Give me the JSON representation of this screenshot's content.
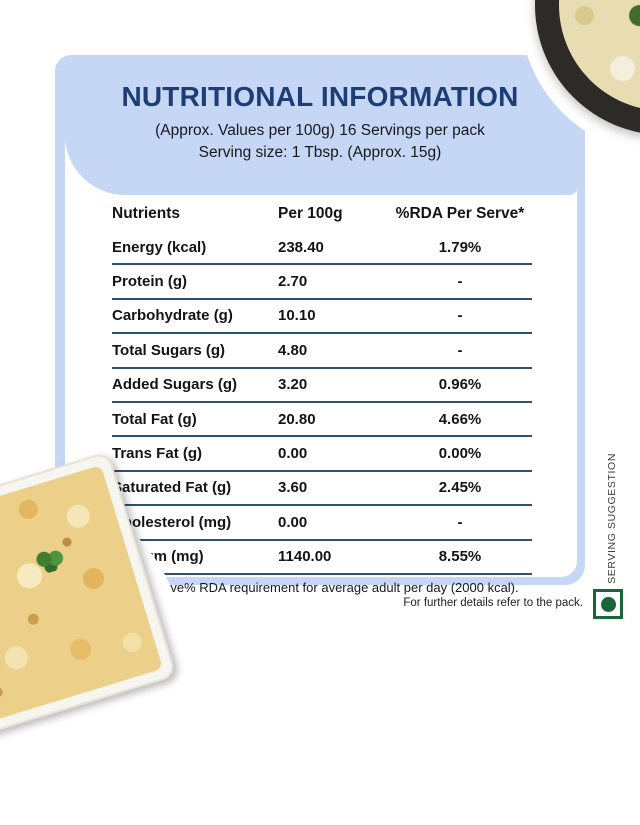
{
  "header": {
    "title": "NUTRITIONAL INFORMATION",
    "subtitle_line1": "(Approx. Values per 100g) 16 Servings per pack",
    "subtitle_line2": "Serving size: 1 Tbsp. (Approx. 15g)"
  },
  "table": {
    "columns": [
      "Nutrients",
      "Per 100g",
      "%RDA Per Serve*"
    ],
    "rows": [
      [
        "Energy (kcal)",
        "238.40",
        "1.79%"
      ],
      [
        "Protein (g)",
        "2.70",
        "-"
      ],
      [
        "Carbohydrate (g)",
        "10.10",
        "-"
      ],
      [
        "Total Sugars (g)",
        "4.80",
        "-"
      ],
      [
        "Added Sugars (g)",
        "3.20",
        "0.96%"
      ],
      [
        "Total Fat (g)",
        "20.80",
        "4.66%"
      ],
      [
        "Trans Fat (g)",
        "0.00",
        "0.00%"
      ],
      [
        "Saturated Fat (g)",
        "3.60",
        "2.45%"
      ],
      [
        "Cholesterol (mg)",
        "0.00",
        "-"
      ],
      [
        "Sodium (mg)",
        "1140.00",
        "8.55%"
      ]
    ],
    "footnote": "*Per serve% RDA requirement for average adult per day (2000 kcal)."
  },
  "footer": {
    "pack_note": "For further details refer to the pack.",
    "serving_suggestion": "SERVING SUGGESTION"
  },
  "icons": {
    "veg_mark": "vegetarian-mark",
    "top_right_photo": "pasta-bowl-with-broccoli",
    "bottom_left_photo": "baked-casserole-dish"
  },
  "colors": {
    "card_bg": "#c5d7f4",
    "title_navy": "#1e3d74",
    "row_line": "#30506f",
    "veg_green": "#17673a",
    "text": "#141414"
  }
}
